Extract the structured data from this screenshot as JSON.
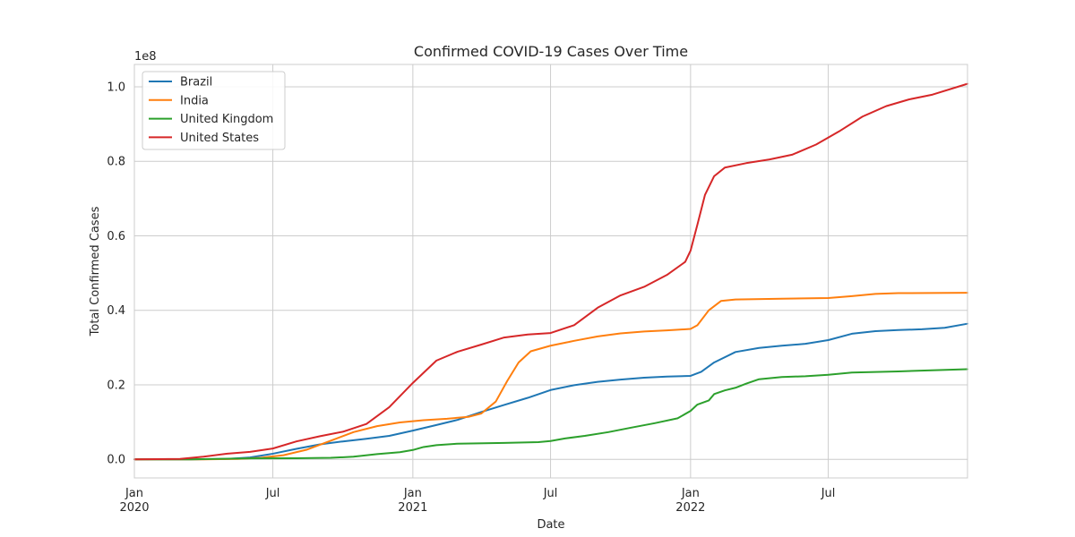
{
  "chart_data": {
    "type": "line",
    "title": "Confirmed COVID-19 Cases Over Time",
    "xlabel": "Date",
    "ylabel": "Total Confirmed Cases",
    "y_exponent_label": "1e8",
    "x_range": [
      "2020-01-01",
      "2022-12-31"
    ],
    "ylim": [
      -5000000,
      106000000
    ],
    "grid": true,
    "legend_position": "top-left",
    "x_ticks": [
      {
        "date": "2020-01-01",
        "label": "Jan",
        "sublabel": "2020"
      },
      {
        "date": "2020-07-01",
        "label": "Jul",
        "sublabel": ""
      },
      {
        "date": "2021-01-01",
        "label": "Jan",
        "sublabel": "2021"
      },
      {
        "date": "2021-07-01",
        "label": "Jul",
        "sublabel": ""
      },
      {
        "date": "2022-01-01",
        "label": "Jan",
        "sublabel": "2022"
      },
      {
        "date": "2022-07-01",
        "label": "Jul",
        "sublabel": ""
      }
    ],
    "y_ticks": [
      {
        "value": 0,
        "label": "0.0"
      },
      {
        "value": 20000000,
        "label": "0.2"
      },
      {
        "value": 40000000,
        "label": "0.4"
      },
      {
        "value": 60000000,
        "label": "0.6"
      },
      {
        "value": 80000000,
        "label": "0.8"
      },
      {
        "value": 100000000,
        "label": "1.0"
      }
    ],
    "series": [
      {
        "name": "Brazil",
        "color": "#1f77b4",
        "points": [
          [
            "2020-01-01",
            0
          ],
          [
            "2020-03-15",
            0
          ],
          [
            "2020-05-01",
            100000
          ],
          [
            "2020-06-01",
            500000
          ],
          [
            "2020-07-01",
            1500000
          ],
          [
            "2020-08-01",
            2800000
          ],
          [
            "2020-09-01",
            4000000
          ],
          [
            "2020-10-01",
            4800000
          ],
          [
            "2020-11-01",
            5500000
          ],
          [
            "2020-12-01",
            6300000
          ],
          [
            "2021-01-01",
            7700000
          ],
          [
            "2021-02-01",
            9200000
          ],
          [
            "2021-03-01",
            10600000
          ],
          [
            "2021-04-01",
            12700000
          ],
          [
            "2021-05-01",
            14600000
          ],
          [
            "2021-06-01",
            16500000
          ],
          [
            "2021-07-01",
            18600000
          ],
          [
            "2021-08-01",
            19900000
          ],
          [
            "2021-09-01",
            20800000
          ],
          [
            "2021-10-01",
            21400000
          ],
          [
            "2021-11-01",
            21900000
          ],
          [
            "2021-12-01",
            22200000
          ],
          [
            "2022-01-01",
            22400000
          ],
          [
            "2022-01-15",
            23500000
          ],
          [
            "2022-02-01",
            26000000
          ],
          [
            "2022-03-01",
            28800000
          ],
          [
            "2022-04-01",
            29900000
          ],
          [
            "2022-05-01",
            30500000
          ],
          [
            "2022-06-01",
            31000000
          ],
          [
            "2022-07-01",
            32000000
          ],
          [
            "2022-08-01",
            33700000
          ],
          [
            "2022-09-01",
            34400000
          ],
          [
            "2022-10-01",
            34700000
          ],
          [
            "2022-11-01",
            34900000
          ],
          [
            "2022-12-01",
            35300000
          ],
          [
            "2022-12-31",
            36400000
          ]
        ]
      },
      {
        "name": "India",
        "color": "#ff7f0e",
        "points": [
          [
            "2020-01-01",
            0
          ],
          [
            "2020-04-01",
            0
          ],
          [
            "2020-05-15",
            100000
          ],
          [
            "2020-06-15",
            400000
          ],
          [
            "2020-07-15",
            1100000
          ],
          [
            "2020-08-15",
            2600000
          ],
          [
            "2020-09-15",
            5000000
          ],
          [
            "2020-10-15",
            7300000
          ],
          [
            "2020-11-15",
            8900000
          ],
          [
            "2020-12-15",
            9900000
          ],
          [
            "2021-01-15",
            10500000
          ],
          [
            "2021-02-15",
            10900000
          ],
          [
            "2021-03-15",
            11400000
          ],
          [
            "2021-04-01",
            12300000
          ],
          [
            "2021-04-20",
            15500000
          ],
          [
            "2021-05-05",
            21000000
          ],
          [
            "2021-05-20",
            26000000
          ],
          [
            "2021-06-05",
            29000000
          ],
          [
            "2021-07-01",
            30500000
          ],
          [
            "2021-08-01",
            31800000
          ],
          [
            "2021-09-01",
            33000000
          ],
          [
            "2021-10-01",
            33800000
          ],
          [
            "2021-11-01",
            34300000
          ],
          [
            "2021-12-01",
            34600000
          ],
          [
            "2022-01-01",
            35000000
          ],
          [
            "2022-01-10",
            36000000
          ],
          [
            "2022-01-25",
            40000000
          ],
          [
            "2022-02-10",
            42500000
          ],
          [
            "2022-03-01",
            42900000
          ],
          [
            "2022-05-01",
            43100000
          ],
          [
            "2022-07-01",
            43300000
          ],
          [
            "2022-08-01",
            43800000
          ],
          [
            "2022-09-01",
            44400000
          ],
          [
            "2022-10-01",
            44600000
          ],
          [
            "2022-12-31",
            44700000
          ]
        ]
      },
      {
        "name": "United Kingdom",
        "color": "#2ca02c",
        "points": [
          [
            "2020-01-01",
            0
          ],
          [
            "2020-03-15",
            0
          ],
          [
            "2020-04-15",
            100000
          ],
          [
            "2020-06-01",
            250000
          ],
          [
            "2020-08-01",
            300000
          ],
          [
            "2020-09-15",
            400000
          ],
          [
            "2020-10-15",
            700000
          ],
          [
            "2020-11-15",
            1400000
          ],
          [
            "2020-12-15",
            1900000
          ],
          [
            "2021-01-01",
            2500000
          ],
          [
            "2021-01-15",
            3300000
          ],
          [
            "2021-02-01",
            3800000
          ],
          [
            "2021-03-01",
            4200000
          ],
          [
            "2021-05-01",
            4400000
          ],
          [
            "2021-06-15",
            4600000
          ],
          [
            "2021-07-01",
            4900000
          ],
          [
            "2021-07-20",
            5600000
          ],
          [
            "2021-08-15",
            6300000
          ],
          [
            "2021-09-15",
            7300000
          ],
          [
            "2021-10-15",
            8500000
          ],
          [
            "2021-11-15",
            9700000
          ],
          [
            "2021-12-15",
            11000000
          ],
          [
            "2022-01-01",
            13000000
          ],
          [
            "2022-01-10",
            14700000
          ],
          [
            "2022-01-25",
            15800000
          ],
          [
            "2022-02-01",
            17500000
          ],
          [
            "2022-02-15",
            18500000
          ],
          [
            "2022-03-01",
            19200000
          ],
          [
            "2022-03-15",
            20300000
          ],
          [
            "2022-04-01",
            21500000
          ],
          [
            "2022-05-01",
            22100000
          ],
          [
            "2022-06-01",
            22300000
          ],
          [
            "2022-07-01",
            22700000
          ],
          [
            "2022-08-01",
            23300000
          ],
          [
            "2022-10-01",
            23600000
          ],
          [
            "2022-12-31",
            24200000
          ]
        ]
      },
      {
        "name": "United States",
        "color": "#d62728",
        "points": [
          [
            "2020-01-01",
            0
          ],
          [
            "2020-03-01",
            100000
          ],
          [
            "2020-04-01",
            700000
          ],
          [
            "2020-05-01",
            1500000
          ],
          [
            "2020-06-01",
            2000000
          ],
          [
            "2020-07-01",
            2900000
          ],
          [
            "2020-08-01",
            4800000
          ],
          [
            "2020-09-01",
            6200000
          ],
          [
            "2020-10-01",
            7400000
          ],
          [
            "2020-11-01",
            9500000
          ],
          [
            "2020-12-01",
            14000000
          ],
          [
            "2021-01-01",
            20500000
          ],
          [
            "2021-02-01",
            26500000
          ],
          [
            "2021-03-01",
            28900000
          ],
          [
            "2021-04-01",
            30800000
          ],
          [
            "2021-05-01",
            32700000
          ],
          [
            "2021-06-01",
            33500000
          ],
          [
            "2021-07-01",
            33900000
          ],
          [
            "2021-08-01",
            36000000
          ],
          [
            "2021-09-01",
            40700000
          ],
          [
            "2021-10-01",
            44000000
          ],
          [
            "2021-11-01",
            46300000
          ],
          [
            "2021-12-01",
            49500000
          ],
          [
            "2021-12-25",
            53000000
          ],
          [
            "2022-01-01",
            56000000
          ],
          [
            "2022-01-10",
            63000000
          ],
          [
            "2022-01-20",
            71000000
          ],
          [
            "2022-02-01",
            76000000
          ],
          [
            "2022-02-15",
            78300000
          ],
          [
            "2022-03-15",
            79500000
          ],
          [
            "2022-04-15",
            80500000
          ],
          [
            "2022-05-15",
            81800000
          ],
          [
            "2022-06-15",
            84500000
          ],
          [
            "2022-07-15",
            88000000
          ],
          [
            "2022-08-15",
            92000000
          ],
          [
            "2022-09-15",
            94800000
          ],
          [
            "2022-10-15",
            96600000
          ],
          [
            "2022-11-15",
            97900000
          ],
          [
            "2022-12-31",
            100800000
          ]
        ]
      }
    ]
  }
}
